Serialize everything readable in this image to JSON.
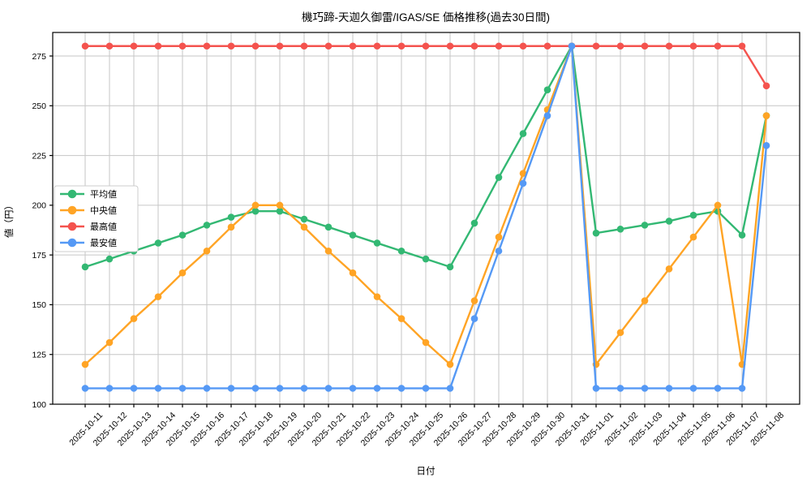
{
  "chart_data": {
    "type": "line",
    "title": "機巧蹄-天迦久御雷/IGAS/SE 価格推移(過去30日間)",
    "xlabel": "日付",
    "ylabel": "値（円）",
    "grid": true,
    "legend_position": "upper-left",
    "background_color": "#ffffff",
    "grid_color": "#c6c6c6",
    "ylim": [
      100,
      287
    ],
    "yticks": [
      100,
      125,
      150,
      175,
      200,
      225,
      250,
      275
    ],
    "x": [
      "2025-10-11",
      "2025-10-12",
      "2025-10-13",
      "2025-10-14",
      "2025-10-15",
      "2025-10-16",
      "2025-10-17",
      "2025-10-18",
      "2025-10-19",
      "2025-10-20",
      "2025-10-21",
      "2025-10-22",
      "2025-10-23",
      "2025-10-24",
      "2025-10-25",
      "2025-10-26",
      "2025-10-27",
      "2025-10-28",
      "2025-10-29",
      "2025-10-30",
      "2025-10-31",
      "2025-11-01",
      "2025-11-02",
      "2025-11-03",
      "2025-11-04",
      "2025-11-05",
      "2025-11-06",
      "2025-11-07",
      "2025-11-08"
    ],
    "series": [
      {
        "name": "平均値",
        "color": "#33b873",
        "values": [
          169,
          173,
          177,
          181,
          185,
          190,
          194,
          197,
          197,
          193,
          189,
          185,
          181,
          177,
          173,
          169,
          191,
          214,
          236,
          258,
          280,
          186,
          188,
          190,
          192,
          195,
          197,
          185,
          245
        ]
      },
      {
        "name": "中央値",
        "color": "#ffa425",
        "values": [
          120,
          131,
          143,
          154,
          166,
          177,
          189,
          200,
          200,
          189,
          177,
          166,
          154,
          143,
          131,
          120,
          152,
          184,
          216,
          248,
          280,
          120,
          136,
          152,
          168,
          184,
          200,
          120,
          245
        ]
      },
      {
        "name": "最高値",
        "color": "#f4534e",
        "values": [
          280,
          280,
          280,
          280,
          280,
          280,
          280,
          280,
          280,
          280,
          280,
          280,
          280,
          280,
          280,
          280,
          280,
          280,
          280,
          280,
          280,
          280,
          280,
          280,
          280,
          280,
          280,
          280,
          260
        ]
      },
      {
        "name": "最安値",
        "color": "#5599f5",
        "values": [
          108,
          108,
          108,
          108,
          108,
          108,
          108,
          108,
          108,
          108,
          108,
          108,
          108,
          108,
          108,
          108,
          143,
          177,
          211,
          245,
          280,
          108,
          108,
          108,
          108,
          108,
          108,
          108,
          230
        ]
      }
    ]
  }
}
